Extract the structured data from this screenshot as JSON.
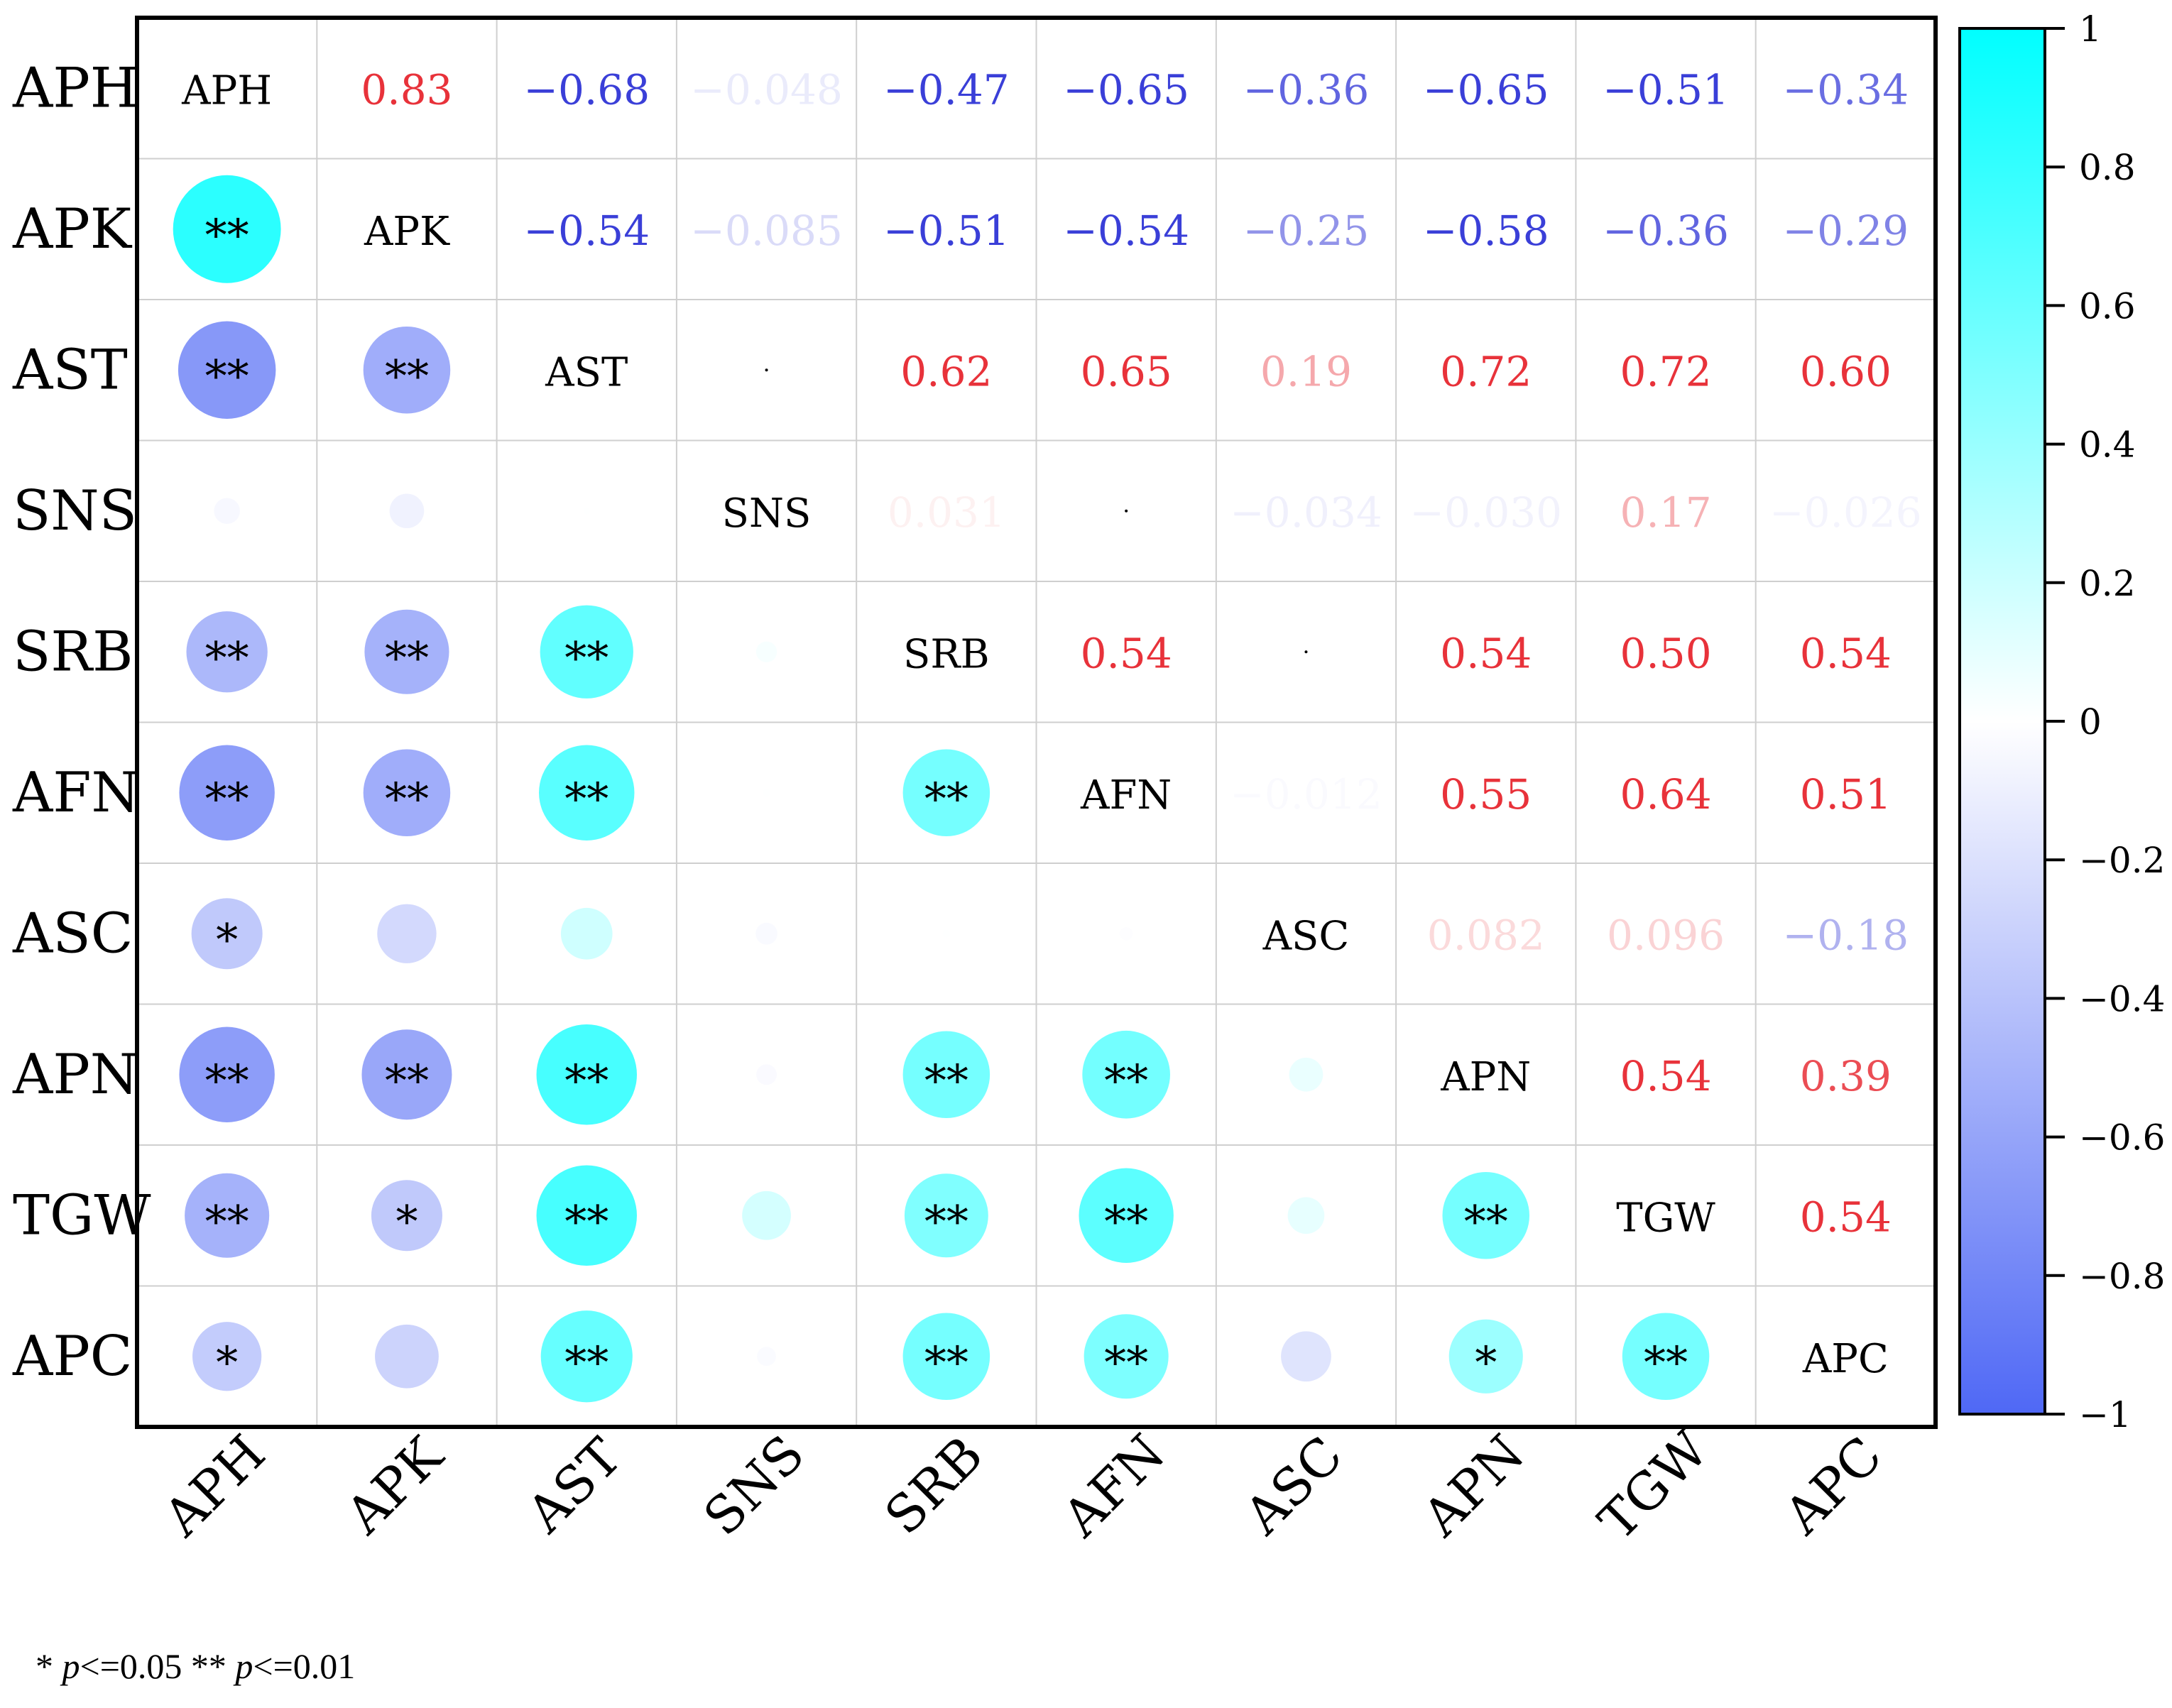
{
  "chart_data": {
    "type": "heatmap",
    "subtype": "correlation-matrix",
    "variables": [
      "APH",
      "APK",
      "AST",
      "SNS",
      "SRB",
      "AFN",
      "ASC",
      "APN",
      "TGW",
      "APC"
    ],
    "matrix": [
      [
        1,
        0.83,
        -0.68,
        -0.048,
        -0.47,
        -0.65,
        -0.36,
        -0.65,
        -0.51,
        -0.34
      ],
      [
        0.83,
        1,
        -0.54,
        -0.085,
        -0.51,
        -0.54,
        -0.25,
        -0.58,
        -0.36,
        -0.29
      ],
      [
        -0.68,
        -0.54,
        1,
        0.003,
        0.62,
        0.65,
        0.19,
        0.72,
        0.72,
        0.6
      ],
      [
        -0.048,
        -0.085,
        0.003,
        1,
        0.031,
        0.004,
        -0.034,
        -0.03,
        0.17,
        -0.026
      ],
      [
        -0.47,
        -0.51,
        0.62,
        0.031,
        1,
        0.54,
        0.004,
        0.54,
        0.5,
        0.54
      ],
      [
        -0.65,
        -0.54,
        0.65,
        0.004,
        0.54,
        1,
        -0.012,
        0.55,
        0.64,
        0.51
      ],
      [
        -0.36,
        -0.25,
        0.19,
        -0.034,
        0.004,
        -0.012,
        1,
        0.082,
        0.096,
        -0.18
      ],
      [
        -0.65,
        -0.58,
        0.72,
        -0.03,
        0.54,
        0.55,
        0.082,
        1,
        0.54,
        0.39
      ],
      [
        -0.51,
        -0.36,
        0.72,
        0.17,
        0.5,
        0.64,
        0.096,
        0.54,
        1,
        0.54
      ],
      [
        -0.34,
        -0.29,
        0.6,
        -0.026,
        0.54,
        0.51,
        -0.18,
        0.39,
        0.54,
        1
      ]
    ],
    "upper_labels": [
      [
        "",
        "0.83",
        "−0.68",
        "−0.048",
        "−0.47",
        "−0.65",
        "−0.36",
        "−0.65",
        "−0.51",
        "−0.34"
      ],
      [
        "",
        "",
        "−0.54",
        "−0.085",
        "−0.51",
        "−0.54",
        "−0.25",
        "−0.58",
        "−0.36",
        "−0.29"
      ],
      [
        "",
        "",
        "",
        "",
        "0.62",
        "0.65",
        "0.19",
        "0.72",
        "0.72",
        "0.60"
      ],
      [
        "",
        "",
        "",
        "",
        "0.031",
        "",
        "−0.034",
        "−0.030",
        "0.17",
        "−0.026"
      ],
      [
        "",
        "",
        "",
        "",
        "",
        "0.54",
        "",
        "0.54",
        "0.50",
        "0.54"
      ],
      [
        "",
        "",
        "",
        "",
        "",
        "",
        "−0.012",
        "0.55",
        "0.64",
        "0.51"
      ],
      [
        "",
        "",
        "",
        "",
        "",
        "",
        "",
        "0.082",
        "0.096",
        "−0.18"
      ],
      [
        "",
        "",
        "",
        "",
        "",
        "",
        "",
        "",
        "0.54",
        "0.39"
      ],
      [
        "",
        "",
        "",
        "",
        "",
        "",
        "",
        "",
        "",
        "0.54"
      ],
      [
        "",
        "",
        "",
        "",
        "",
        "",
        "",
        "",
        "",
        ""
      ]
    ],
    "significance": [
      [
        "",
        "",
        "",
        "",
        "",
        "",
        "",
        "",
        "",
        ""
      ],
      [
        "**",
        "",
        "",
        "",
        "",
        "",
        "",
        "",
        "",
        ""
      ],
      [
        "**",
        "**",
        "",
        "",
        "",
        "",
        "",
        "",
        "",
        ""
      ],
      [
        "",
        "",
        "",
        "",
        "",
        "",
        "",
        "",
        "",
        ""
      ],
      [
        "**",
        "**",
        "**",
        "",
        "",
        "",
        "",
        "",
        "",
        ""
      ],
      [
        "**",
        "**",
        "**",
        "",
        "**",
        "",
        "",
        "",
        "",
        ""
      ],
      [
        "*",
        "",
        "",
        "",
        "",
        "",
        "",
        "",
        "",
        ""
      ],
      [
        "**",
        "**",
        "**",
        "",
        "**",
        "**",
        "",
        "",
        "",
        ""
      ],
      [
        "**",
        "*",
        "**",
        "",
        "**",
        "**",
        "",
        "**",
        "",
        ""
      ],
      [
        "*",
        "",
        "**",
        "",
        "**",
        "**",
        "",
        "*",
        "**",
        ""
      ]
    ],
    "colorbar": {
      "min": -1,
      "max": 1,
      "ticks": [
        "1",
        "0.8",
        "0.6",
        "0.4",
        "0.2",
        "0",
        "−0.2",
        "−0.4",
        "−0.6",
        "−0.8",
        "−1"
      ],
      "colors": {
        "positive": "#00FFFF",
        "zero": "#FFFFFF",
        "negative": "#4F68F5"
      },
      "position": "right"
    },
    "text_colors": {
      "positive": "#E8323A",
      "negative": "#3A3FD8"
    },
    "footnote": {
      "part1": "* ",
      "p1": "p",
      "part2": "<=0.05  ** ",
      "p2": "p",
      "part3": "<=0.01"
    }
  }
}
